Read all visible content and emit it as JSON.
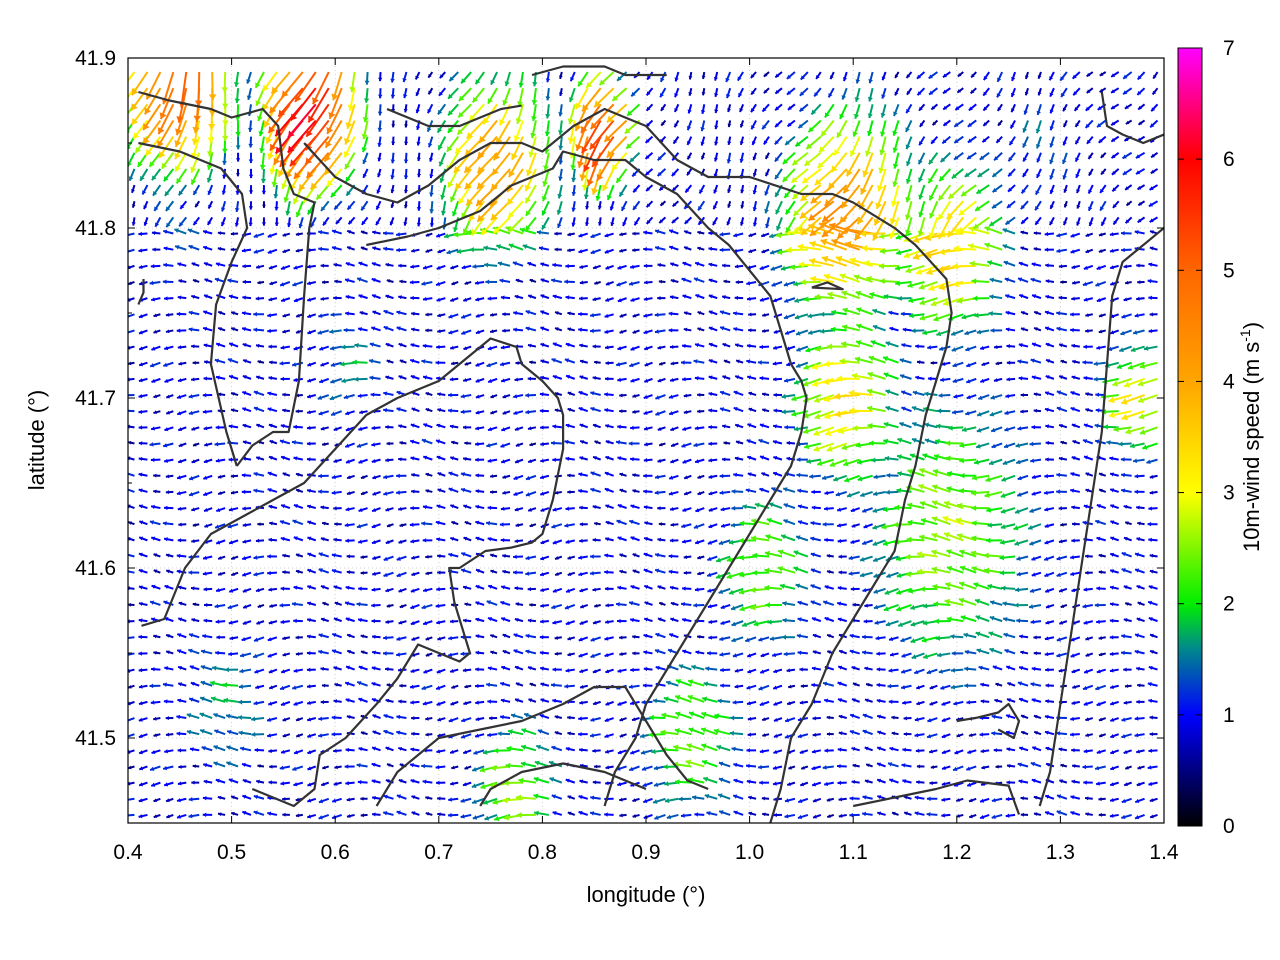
{
  "chart_data": {
    "type": "vector-field",
    "xlabel": "longitude (°)",
    "ylabel": "latitude (°)",
    "xlim": [
      0.4,
      1.4
    ],
    "ylim": [
      41.45,
      41.9
    ],
    "x_ticks": [
      "0.4",
      "0.5",
      "0.6",
      "0.7",
      "0.8",
      "0.9",
      "1.0",
      "1.1",
      "1.2",
      "1.3",
      "1.4"
    ],
    "y_ticks": [
      "41.5",
      "41.6",
      "41.7",
      "41.8",
      "41.9"
    ],
    "grid": true,
    "colorbar": {
      "label_main": "10m-wind speed (m s",
      "label_sup": "-1",
      "label_end": ")",
      "range": [
        0,
        7
      ],
      "ticks": [
        "0",
        "1",
        "2",
        "3",
        "4",
        "5",
        "6",
        "7"
      ],
      "stops": [
        {
          "v": 0,
          "c": "#000000"
        },
        {
          "v": 1,
          "c": "#0000ff"
        },
        {
          "v": 1.6,
          "c": "#008a8a"
        },
        {
          "v": 2,
          "c": "#00ee00"
        },
        {
          "v": 3,
          "c": "#ffff00"
        },
        {
          "v": 4,
          "c": "#ffa500"
        },
        {
          "v": 5,
          "c": "#ff6600"
        },
        {
          "v": 6,
          "c": "#ff0000"
        },
        {
          "v": 7,
          "c": "#ff00ff"
        }
      ]
    },
    "grid_spacing": {
      "dlon": 0.0125,
      "dlat": 0.0095
    },
    "speed_regions": [
      {
        "lon": 0.58,
        "lat": 41.87,
        "speed": 6.2,
        "radius": 0.05
      },
      {
        "lon": 0.45,
        "lat": 41.89,
        "speed": 5.0,
        "radius": 0.06
      },
      {
        "lon": 0.86,
        "lat": 41.86,
        "speed": 5.8,
        "radius": 0.035
      },
      {
        "lon": 0.76,
        "lat": 41.84,
        "speed": 4.2,
        "radius": 0.06
      },
      {
        "lon": 1.1,
        "lat": 41.81,
        "speed": 4.4,
        "radius": 0.07
      },
      {
        "lon": 1.2,
        "lat": 41.79,
        "speed": 3.6,
        "radius": 0.06
      },
      {
        "lon": 1.1,
        "lat": 41.7,
        "speed": 3.3,
        "radius": 0.06
      },
      {
        "lon": 1.38,
        "lat": 41.7,
        "speed": 3.2,
        "radius": 0.04
      },
      {
        "lon": 1.2,
        "lat": 41.62,
        "speed": 2.6,
        "radius": 0.1
      },
      {
        "lon": 1.02,
        "lat": 41.6,
        "speed": 2.4,
        "radius": 0.06
      },
      {
        "lon": 0.95,
        "lat": 41.5,
        "speed": 2.4,
        "radius": 0.06
      },
      {
        "lon": 0.78,
        "lat": 41.47,
        "speed": 2.6,
        "radius": 0.05
      },
      {
        "lon": 0.5,
        "lat": 41.52,
        "speed": 1.7,
        "radius": 0.06
      },
      {
        "lon": 0.45,
        "lat": 41.8,
        "speed": 1.4,
        "radius": 0.04
      },
      {
        "lon": 0.62,
        "lat": 41.72,
        "speed": 1.6,
        "radius": 0.05
      },
      {
        "lon": 1.28,
        "lat": 41.85,
        "speed": 1.4,
        "radius": 0.05
      }
    ],
    "contours": [
      [
        [
          0.41,
          41.85
        ],
        [
          0.45,
          41.845
        ],
        [
          0.49,
          41.835
        ],
        [
          0.51,
          41.82
        ],
        [
          0.515,
          41.8
        ],
        [
          0.5,
          41.78
        ],
        [
          0.485,
          41.755
        ],
        [
          0.48,
          41.72
        ],
        [
          0.495,
          41.68
        ],
        [
          0.505,
          41.66
        ]
      ],
      [
        [
          0.505,
          41.66
        ],
        [
          0.52,
          41.672
        ],
        [
          0.54,
          41.68
        ],
        [
          0.555,
          41.68
        ],
        [
          0.565,
          41.71
        ],
        [
          0.57,
          41.76
        ],
        [
          0.575,
          41.8
        ],
        [
          0.58,
          41.815
        ],
        [
          0.56,
          41.82
        ],
        [
          0.55,
          41.835
        ],
        [
          0.545,
          41.86
        ],
        [
          0.53,
          41.87
        ],
        [
          0.5,
          41.865
        ],
        [
          0.48,
          41.87
        ],
        [
          0.44,
          41.875
        ],
        [
          0.41,
          41.88
        ]
      ],
      [
        [
          0.41,
          41.755
        ],
        [
          0.415,
          41.762
        ],
        [
          0.415,
          41.77
        ]
      ],
      [
        [
          0.413,
          41.566
        ],
        [
          0.435,
          41.57
        ],
        [
          0.455,
          41.6
        ],
        [
          0.48,
          41.62
        ],
        [
          0.51,
          41.63
        ],
        [
          0.54,
          41.64
        ],
        [
          0.57,
          41.65
        ],
        [
          0.6,
          41.67
        ],
        [
          0.63,
          41.69
        ],
        [
          0.66,
          41.7
        ],
        [
          0.7,
          41.71
        ],
        [
          0.73,
          41.725
        ],
        [
          0.75,
          41.735
        ],
        [
          0.775,
          41.73
        ],
        [
          0.78,
          41.72
        ],
        [
          0.8,
          41.71
        ],
        [
          0.815,
          41.7
        ],
        [
          0.82,
          41.69
        ],
        [
          0.82,
          41.67
        ],
        [
          0.81,
          41.64
        ],
        [
          0.8,
          41.62
        ],
        [
          0.79,
          41.615
        ],
        [
          0.77,
          41.612
        ],
        [
          0.745,
          41.61
        ],
        [
          0.72,
          41.6
        ],
        [
          0.71,
          41.6
        ],
        [
          0.715,
          41.58
        ],
        [
          0.73,
          41.55
        ],
        [
          0.72,
          41.545
        ],
        [
          0.7,
          41.55
        ],
        [
          0.68,
          41.555
        ],
        [
          0.66,
          41.535
        ],
        [
          0.64,
          41.52
        ],
        [
          0.61,
          41.5
        ],
        [
          0.585,
          41.49
        ],
        [
          0.58,
          41.47
        ],
        [
          0.56,
          41.46
        ],
        [
          0.52,
          41.47
        ]
      ],
      [
        [
          0.57,
          41.85
        ],
        [
          0.6,
          41.83
        ],
        [
          0.63,
          41.82
        ],
        [
          0.66,
          41.815
        ],
        [
          0.69,
          41.825
        ],
        [
          0.72,
          41.84
        ],
        [
          0.75,
          41.85
        ],
        [
          0.78,
          41.85
        ],
        [
          0.8,
          41.845
        ],
        [
          0.81,
          41.85
        ],
        [
          0.83,
          41.86
        ],
        [
          0.86,
          41.87
        ],
        [
          0.9,
          41.86
        ],
        [
          0.93,
          41.84
        ],
        [
          0.96,
          41.83
        ],
        [
          1.0,
          41.83
        ],
        [
          1.05,
          41.82
        ],
        [
          1.08,
          41.82
        ],
        [
          1.1,
          41.815
        ],
        [
          1.14,
          41.8
        ],
        [
          1.16,
          41.79
        ],
        [
          1.19,
          41.77
        ],
        [
          1.195,
          41.75
        ],
        [
          1.19,
          41.73
        ],
        [
          1.18,
          41.71
        ],
        [
          1.17,
          41.69
        ],
        [
          1.16,
          41.66
        ],
        [
          1.15,
          41.64
        ],
        [
          1.14,
          41.61
        ],
        [
          1.12,
          41.59
        ],
        [
          1.1,
          41.57
        ],
        [
          1.08,
          41.55
        ],
        [
          1.06,
          41.52
        ],
        [
          1.04,
          41.5
        ],
        [
          1.03,
          41.47
        ],
        [
          1.02,
          41.45
        ]
      ],
      [
        [
          0.63,
          41.79
        ],
        [
          0.67,
          41.795
        ],
        [
          0.7,
          41.8
        ],
        [
          0.74,
          41.81
        ],
        [
          0.77,
          41.825
        ],
        [
          0.79,
          41.83
        ],
        [
          0.81,
          41.835
        ],
        [
          0.82,
          41.845
        ],
        [
          0.85,
          41.84
        ],
        [
          0.88,
          41.84
        ],
        [
          0.9,
          41.83
        ],
        [
          0.93,
          41.82
        ],
        [
          0.96,
          41.8
        ],
        [
          0.98,
          41.79
        ],
        [
          1.0,
          41.775
        ],
        [
          1.02,
          41.76
        ],
        [
          1.03,
          41.74
        ],
        [
          1.04,
          41.72
        ],
        [
          1.05,
          41.71
        ],
        [
          1.055,
          41.7
        ],
        [
          1.05,
          41.68
        ],
        [
          1.04,
          41.66
        ],
        [
          1.02,
          41.64
        ],
        [
          1.0,
          41.62
        ],
        [
          0.98,
          41.6
        ],
        [
          0.96,
          41.58
        ],
        [
          0.94,
          41.56
        ],
        [
          0.92,
          41.54
        ],
        [
          0.9,
          41.52
        ],
        [
          0.89,
          41.5
        ],
        [
          0.87,
          41.48
        ],
        [
          0.86,
          41.46
        ]
      ],
      [
        [
          0.64,
          41.46
        ],
        [
          0.66,
          41.48
        ],
        [
          0.7,
          41.5
        ],
        [
          0.74,
          41.505
        ],
        [
          0.78,
          41.51
        ],
        [
          0.82,
          41.52
        ],
        [
          0.85,
          41.53
        ],
        [
          0.88,
          41.53
        ],
        [
          0.9,
          41.51
        ],
        [
          0.92,
          41.49
        ],
        [
          0.94,
          41.475
        ],
        [
          0.96,
          41.47
        ]
      ],
      [
        [
          0.74,
          41.46
        ],
        [
          0.75,
          41.47
        ],
        [
          0.78,
          41.48
        ],
        [
          0.82,
          41.485
        ],
        [
          0.86,
          41.48
        ],
        [
          0.9,
          41.47
        ]
      ],
      [
        [
          1.06,
          41.765
        ],
        [
          1.075,
          41.768
        ],
        [
          1.09,
          41.764
        ],
        [
          1.06,
          41.765
        ]
      ],
      [
        [
          1.1,
          41.46
        ],
        [
          1.14,
          41.465
        ],
        [
          1.18,
          41.47
        ],
        [
          1.21,
          41.475
        ],
        [
          1.25,
          41.472
        ],
        [
          1.26,
          41.455
        ]
      ],
      [
        [
          1.2,
          41.51
        ],
        [
          1.22,
          41.512
        ],
        [
          1.24,
          41.515
        ],
        [
          1.25,
          41.52
        ],
        [
          1.26,
          41.51
        ],
        [
          1.255,
          41.5
        ],
        [
          1.24,
          41.505
        ]
      ],
      [
        [
          1.28,
          41.46
        ],
        [
          1.29,
          41.48
        ],
        [
          1.3,
          41.52
        ],
        [
          1.31,
          41.56
        ],
        [
          1.32,
          41.6
        ],
        [
          1.33,
          41.64
        ],
        [
          1.34,
          41.68
        ],
        [
          1.345,
          41.72
        ],
        [
          1.35,
          41.76
        ],
        [
          1.36,
          41.78
        ],
        [
          1.38,
          41.79
        ],
        [
          1.4,
          41.8
        ]
      ],
      [
        [
          1.34,
          41.88
        ],
        [
          1.345,
          41.86
        ],
        [
          1.36,
          41.855
        ],
        [
          1.38,
          41.85
        ],
        [
          1.4,
          41.855
        ]
      ],
      [
        [
          0.65,
          41.87
        ],
        [
          0.69,
          41.86
        ],
        [
          0.72,
          41.86
        ],
        [
          0.74,
          41.865
        ],
        [
          0.76,
          41.87
        ],
        [
          0.78,
          41.872
        ]
      ],
      [
        [
          0.79,
          41.89
        ],
        [
          0.82,
          41.895
        ],
        [
          0.86,
          41.895
        ],
        [
          0.88,
          41.89
        ],
        [
          0.92,
          41.89
        ]
      ]
    ]
  }
}
